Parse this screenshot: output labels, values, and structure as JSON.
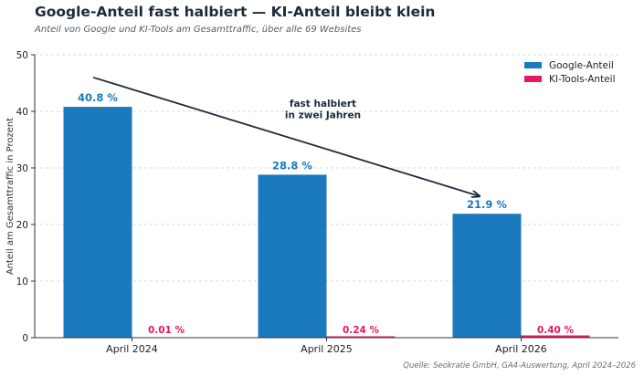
{
  "title": "Google-Anteil fast halbiert — KI-Anteil bleibt klein",
  "subtitle": "Anteil von Google und KI-Tools am Gesamttraffic, über alle 69 Websites",
  "source": "Quelle: Seokratie GmbH, GA4-Auswertung, April 2024–2026",
  "colors": {
    "google": "#1b79bd",
    "ki": "#e5195f",
    "annotation": "#1c2b3a",
    "grid": "#c8ccd0",
    "axis": "#333333"
  },
  "chart_data": {
    "type": "bar",
    "title": "Google-Anteil fast halbiert — KI-Anteil bleibt klein",
    "ylabel": "Anteil am Gesamttraffic in Prozent",
    "xlabel": "",
    "ylim": [
      0,
      50
    ],
    "yticks": [
      0,
      10,
      20,
      30,
      40,
      50
    ],
    "grid": true,
    "legend_position": "top-right",
    "categories": [
      "April 2024",
      "April 2025",
      "April 2026"
    ],
    "series": [
      {
        "name": "Google-Anteil",
        "values": [
          40.8,
          28.8,
          21.9
        ],
        "labels": [
          "40.8 %",
          "28.8 %",
          "21.9 %"
        ]
      },
      {
        "name": "KI-Tools-Anteil",
        "values": [
          0.01,
          0.24,
          0.4
        ],
        "labels": [
          "0.01 %",
          "0.24 %",
          "0.40 %"
        ]
      }
    ],
    "annotation": {
      "line1": "fast halbiert",
      "line2": "in zwei Jahren"
    }
  }
}
